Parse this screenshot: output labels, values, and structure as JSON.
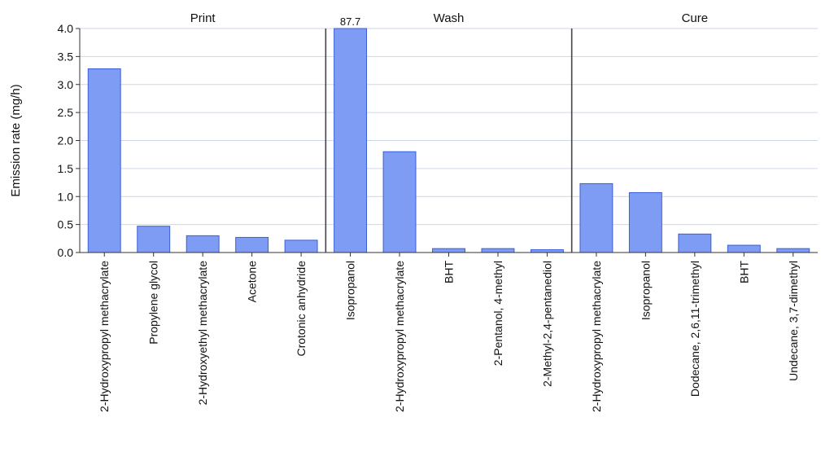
{
  "chart_data": {
    "type": "bar",
    "ylabel": "Emission rate (mg/h)",
    "ylim": [
      0,
      4.0
    ],
    "yticks": [
      "0.0",
      "0.5",
      "1.0",
      "1.5",
      "2.0",
      "2.5",
      "3.0",
      "3.5",
      "4.0"
    ],
    "grid": true,
    "bar_color": "#7f9cf5",
    "bar_edge_color": "#3b5fd6",
    "panels": [
      {
        "title": "Print",
        "categories": [
          "2-Hydroxypropyl methacrylate",
          "Propylene glycol",
          "2-Hydroxyethyl methacrylate",
          "Acetone",
          "Crotonic anhydride"
        ],
        "values": [
          3.28,
          0.47,
          0.3,
          0.27,
          0.22
        ],
        "data_labels": [
          "",
          "",
          "",
          "",
          ""
        ]
      },
      {
        "title": "Wash",
        "categories": [
          "Isopropanol",
          "2-Hydroxypropyl methacrylate",
          "BHT",
          "2-Pentanol, 4-methyl",
          "2-Methyl-2,4-pentanediol"
        ],
        "values": [
          87.7,
          1.8,
          0.07,
          0.07,
          0.05
        ],
        "data_labels": [
          "87.7",
          "",
          "",
          "",
          ""
        ]
      },
      {
        "title": "Cure",
        "categories": [
          "2-Hydroxypropyl methacrylate",
          "Isopropanol",
          "Dodecane, 2,6,11-trimethyl",
          "BHT",
          "Undecane, 3,7-dimethyl"
        ],
        "values": [
          1.23,
          1.07,
          0.33,
          0.13,
          0.07
        ],
        "data_labels": [
          "",
          "",
          "",
          "",
          ""
        ]
      }
    ]
  }
}
